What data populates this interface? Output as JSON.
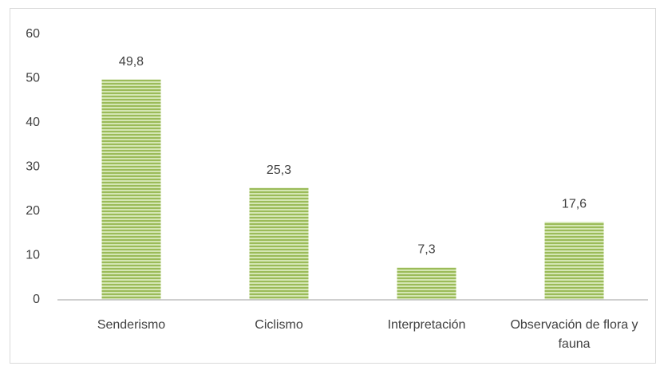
{
  "chart_data": {
    "type": "bar",
    "categories": [
      "Senderismo",
      "Ciclismo",
      "Interpretación",
      "Observación de flora y fauna"
    ],
    "values": [
      49.8,
      25.3,
      7.3,
      17.6
    ],
    "value_labels": [
      "49,8",
      "25,3",
      "7,3",
      "17,6"
    ],
    "color": "#9bbb59",
    "ylim": [
      0,
      60
    ],
    "yticks": [
      0,
      10,
      20,
      30,
      40,
      50,
      60
    ],
    "grid": false
  }
}
